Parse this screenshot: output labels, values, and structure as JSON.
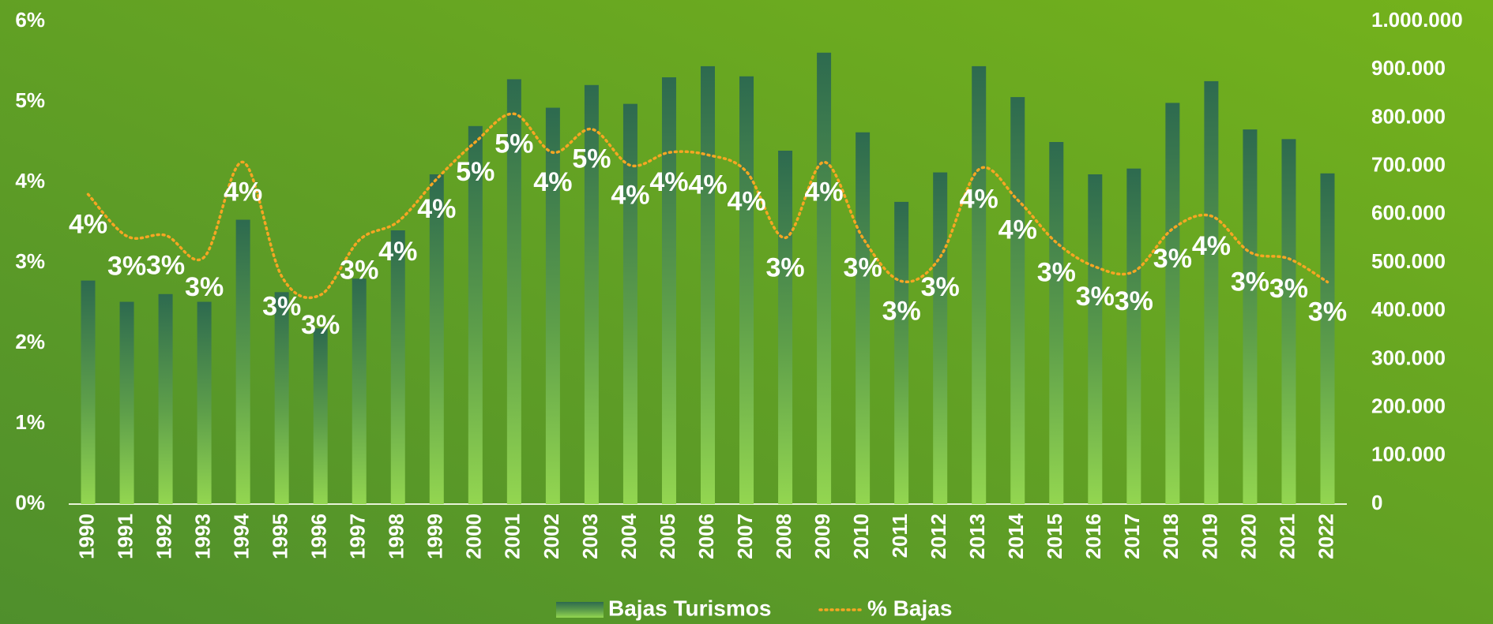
{
  "chart_data": {
    "type": "bar-line",
    "categories": [
      "1990",
      "1991",
      "1992",
      "1993",
      "1994",
      "1995",
      "1996",
      "1997",
      "1998",
      "1999",
      "2000",
      "2001",
      "2002",
      "2003",
      "2004",
      "2005",
      "2006",
      "2007",
      "2008",
      "2009",
      "2010",
      "2011",
      "2012",
      "2013",
      "2014",
      "2015",
      "2016",
      "2017",
      "2018",
      "2019",
      "2020",
      "2021",
      "2022"
    ],
    "series": [
      {
        "name": "Bajas Turismos",
        "color": "#2d6a4f",
        "type": "bar",
        "axis": "y2",
        "values": [
          463000,
          419000,
          435000,
          419000,
          589000,
          439000,
          364000,
          467000,
          567000,
          683000,
          783000,
          880000,
          821000,
          868000,
          829000,
          884000,
          907000,
          886000,
          732000,
          935000,
          770000,
          626000,
          687000,
          907000,
          843000,
          750000,
          683000,
          695000,
          831000,
          876000,
          776000,
          756000,
          685000
        ]
      },
      {
        "name": "% Bajas",
        "color": "#f5a623",
        "type": "line",
        "values": [
          3.85,
          3.33,
          3.34,
          3.07,
          4.25,
          2.83,
          2.6,
          3.28,
          3.51,
          4.04,
          4.5,
          4.85,
          4.37,
          4.66,
          4.21,
          4.37,
          4.34,
          4.13,
          3.31,
          4.25,
          3.31,
          2.77,
          3.07,
          4.16,
          3.78,
          3.25,
          2.95,
          2.89,
          3.42,
          3.58,
          3.13,
          3.05,
          2.76
        ],
        "value_labels": [
          "4%",
          "3%",
          "3%",
          "3%",
          "4%",
          "3%",
          "3%",
          "3%",
          "4%",
          "4%",
          "5%",
          "5%",
          "4%",
          "5%",
          "4%",
          "4%",
          "4%",
          "4%",
          "3%",
          "4%",
          "3%",
          "3%",
          "3%",
          "4%",
          "4%",
          "3%",
          "3%",
          "3%",
          "3%",
          "4%",
          "3%",
          "3%",
          "3%"
        ]
      }
    ],
    "ylim": [
      0,
      6
    ],
    "yticks": [
      {
        "value": 0,
        "label": "0%"
      },
      {
        "value": 1,
        "label": "1%"
      },
      {
        "value": 2,
        "label": "2%"
      },
      {
        "value": 3,
        "label": "3%"
      },
      {
        "value": 4,
        "label": "4%"
      },
      {
        "value": 5,
        "label": "5%"
      },
      {
        "value": 6,
        "label": "6%"
      }
    ],
    "y2lim": [
      0,
      1000000
    ],
    "y2ticks": [
      0,
      {
        "value": 100000,
        "label": "100.000"
      },
      {
        "value": 200000,
        "label": "200.000"
      },
      {
        "value": 300000,
        "label": "300.000"
      },
      {
        "value": 400000,
        "label": "400.000"
      },
      {
        "value": 500000,
        "label": "500.000"
      },
      {
        "value": 600000,
        "label": "600.000"
      },
      {
        "value": 700000,
        "label": "700.000"
      },
      {
        "value": 800000,
        "label": "800.000"
      },
      {
        "value": 900000,
        "label": "900.000"
      },
      {
        "value": 1000000,
        "label": "1.000.000"
      }
    ],
    "legend": "bottom"
  }
}
